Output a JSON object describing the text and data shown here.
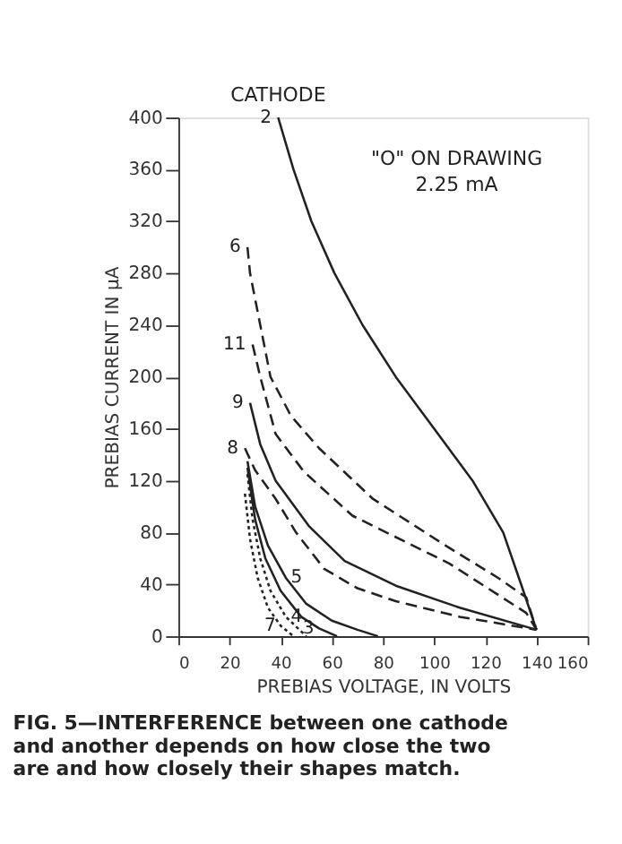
{
  "chart_data": {
    "type": "line",
    "xlabel": "PREBIAS VOLTAGE, IN VOLTS",
    "ylabel": "PREBIAS CURRENT IN μA",
    "xlim": [
      0,
      160
    ],
    "xticks": [
      0,
      20,
      40,
      60,
      80,
      100,
      120,
      140,
      160
    ],
    "ylim": [
      0,
      400
    ],
    "yticks": [
      0,
      40,
      80,
      120,
      160,
      200,
      240,
      280,
      320,
      360,
      400
    ],
    "grid": false,
    "marker": "none",
    "legend_title": "CATHODE",
    "annotations": [
      "\"O\" ON DRAWING",
      "2.25 mA",
      "FIG. 5—INTERFERENCE between one cathode and another depends on how close the two are and how closely their shapes match."
    ],
    "series": [
      {
        "name": "2",
        "color": "#222222",
        "line_style": "solid",
        "x": [
          39,
          45,
          52,
          61,
          72,
          85,
          100,
          115,
          127,
          134,
          140
        ],
        "values": [
          400,
          360,
          320,
          280,
          240,
          200,
          160,
          120,
          80,
          40,
          5
        ]
      },
      {
        "name": "6",
        "color": "#222222",
        "line_style": "dashed",
        "x": [
          27,
          28,
          31,
          36,
          44,
          55,
          76,
          106,
          125,
          136,
          140
        ],
        "values": [
          300,
          280,
          250,
          200,
          170,
          145,
          106,
          68,
          45,
          30,
          5
        ]
      },
      {
        "name": "11",
        "color": "#222222",
        "line_style": "dashed",
        "x": [
          29,
          32,
          38,
          49,
          68,
          106,
          136,
          140
        ],
        "values": [
          225,
          200,
          156,
          127,
          93,
          56,
          18,
          5
        ]
      },
      {
        "name": "9",
        "color": "#222222",
        "line_style": "solid",
        "x": [
          28,
          32,
          38,
          51,
          65,
          85,
          110,
          140
        ],
        "values": [
          180,
          148,
          120,
          85,
          58,
          39,
          22,
          5
        ]
      },
      {
        "name": "8",
        "color": "#222222",
        "line_style": "dashed",
        "x": [
          26,
          30,
          38,
          46,
          57,
          70,
          85,
          110,
          140
        ],
        "values": [
          145,
          128,
          106,
          80,
          52,
          37,
          27,
          15,
          5
        ]
      },
      {
        "name": "5",
        "color": "#222222",
        "line_style": "solid",
        "x": [
          27,
          30,
          35,
          42,
          50,
          60,
          70,
          78
        ],
        "values": [
          135,
          100,
          70,
          45,
          25,
          12,
          5,
          0
        ]
      },
      {
        "name": "4",
        "color": "#222222",
        "line_style": "dotted",
        "x": [
          27,
          29,
          32,
          36,
          42,
          50
        ],
        "values": [
          125,
          90,
          60,
          35,
          15,
          0
        ]
      },
      {
        "name": "3",
        "color": "#222222",
        "line_style": "solid",
        "x": [
          27,
          30,
          34,
          40,
          48,
          55,
          62
        ],
        "values": [
          130,
          90,
          60,
          35,
          15,
          6,
          0
        ]
      },
      {
        "name": "7",
        "color": "#222222",
        "line_style": "dotted",
        "x": [
          26,
          28,
          31,
          35,
          40,
          45
        ],
        "values": [
          110,
          75,
          45,
          22,
          8,
          0
        ]
      }
    ]
  }
}
